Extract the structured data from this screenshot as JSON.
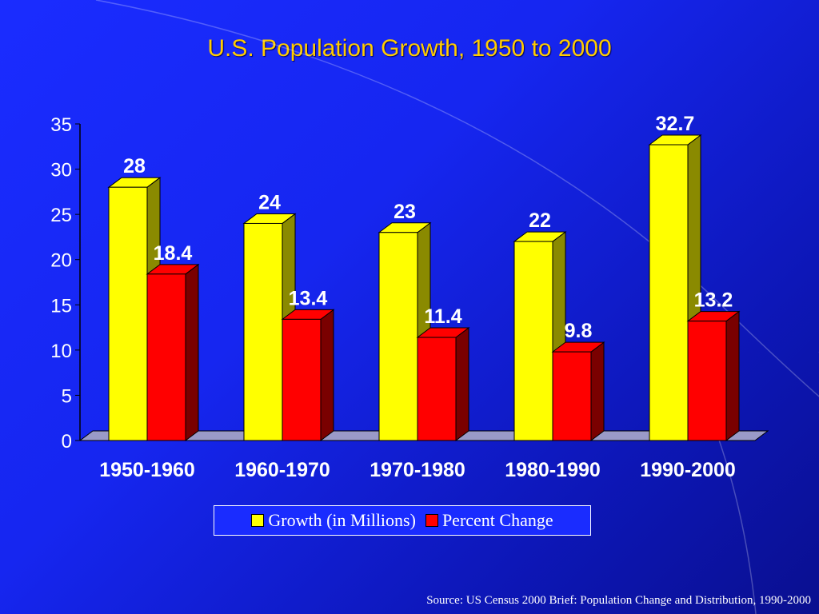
{
  "slide": {
    "title": "U.S. Population Growth, 1950 to 2000",
    "source": "Source: US Census 2000 Brief: Population Change and Distribution, 1990-2000"
  },
  "colors": {
    "growth": "#ffff00",
    "growth_side": "#8a8a00",
    "percent": "#ff0000",
    "percent_side": "#7a0000",
    "floor": "#9a9ac8",
    "label": "#ffffff",
    "title": "#ffcc00"
  },
  "chart_data": {
    "type": "bar",
    "title": "U.S. Population Growth, 1950 to 2000",
    "categories": [
      "1950-1960",
      "1960-1970",
      "1970-1980",
      "1980-1990",
      "1990-2000"
    ],
    "series": [
      {
        "name": "Growth (in Millions)",
        "values": [
          28,
          24,
          23,
          22,
          32.7
        ],
        "labels": [
          "28",
          "24",
          "23",
          "22",
          "32.7"
        ]
      },
      {
        "name": "Percent Change",
        "values": [
          18.4,
          13.4,
          11.4,
          9.8,
          13.2
        ],
        "labels": [
          "18.4",
          "13.4",
          "11.4",
          "9.8",
          "13.2"
        ]
      }
    ],
    "ylim": [
      0,
      35
    ],
    "yticks": [
      "0",
      "5",
      "10",
      "15",
      "20",
      "25",
      "30",
      "35"
    ],
    "style": "3d",
    "legend": "bottom",
    "grid": false
  }
}
